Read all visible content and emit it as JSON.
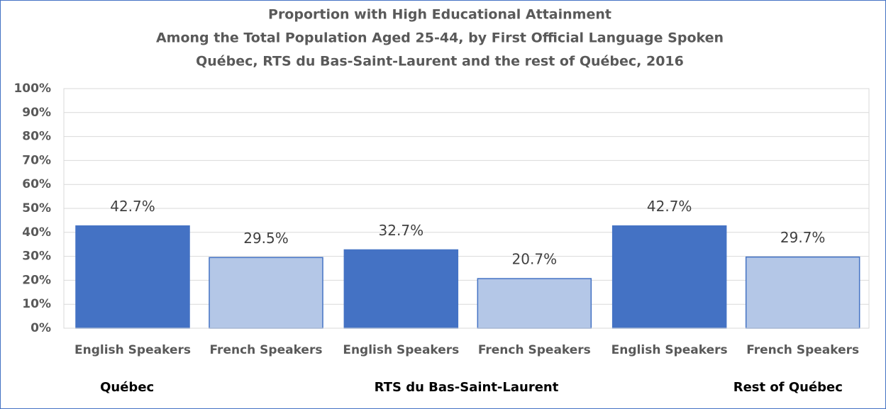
{
  "chart_data": {
    "type": "bar",
    "title": [
      "Proportion with High Educational Attainment",
      "Among the Total Population Aged 25-44, by First Official Language Spoken",
      "Québec, RTS du Bas-Saint-Laurent and the rest of Québec, 2016"
    ],
    "categories": [
      "Québec",
      "RTS du Bas-Saint-Laurent",
      "Rest of Québec"
    ],
    "series": [
      {
        "name": "English Speakers",
        "color": "#4472c4",
        "values": [
          42.7,
          32.7,
          42.7
        ],
        "value_labels": [
          "42.7%",
          "32.7%",
          "42.7%"
        ]
      },
      {
        "name": "French Speakers",
        "color": "#b4c7e7",
        "values": [
          29.5,
          20.7,
          29.7
        ],
        "value_labels": [
          "29.5%",
          "20.7%",
          "29.7%"
        ]
      }
    ],
    "ylim": [
      0,
      100
    ],
    "yticks": [
      {
        "value": 0,
        "label": "0%"
      },
      {
        "value": 10,
        "label": "10%"
      },
      {
        "value": 20,
        "label": "20%"
      },
      {
        "value": 30,
        "label": "30%"
      },
      {
        "value": 40,
        "label": "40%"
      },
      {
        "value": 50,
        "label": "50%"
      },
      {
        "value": 60,
        "label": "60%"
      },
      {
        "value": 70,
        "label": "70%"
      },
      {
        "value": 80,
        "label": "80%"
      },
      {
        "value": 90,
        "label": "90%"
      },
      {
        "value": 100,
        "label": "100%"
      }
    ],
    "grid": true
  }
}
